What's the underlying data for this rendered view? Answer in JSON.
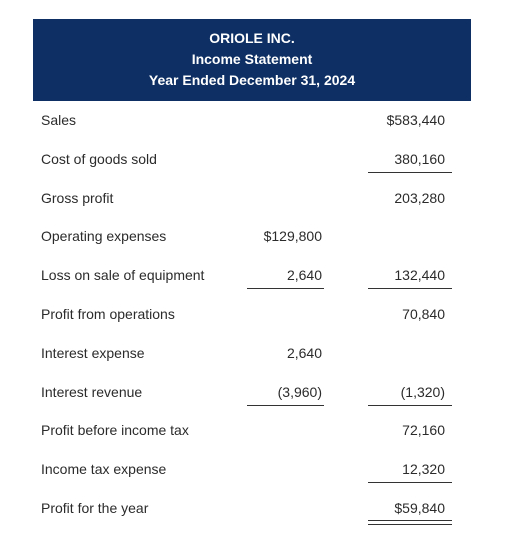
{
  "header": {
    "company": "ORIOLE INC.",
    "statement": "Income Statement",
    "period": "Year Ended December 31, 2024"
  },
  "rows": [
    {
      "label": "Sales",
      "mid": "",
      "right": "$583,440"
    },
    {
      "label": "Cost of goods sold",
      "mid": "",
      "right": "380,160"
    },
    {
      "label": "Gross profit",
      "mid": "",
      "right": "203,280"
    },
    {
      "label": "Operating expenses",
      "mid": "$129,800",
      "right": ""
    },
    {
      "label": "Loss on sale of equipment",
      "mid": "2,640",
      "right": "132,440"
    },
    {
      "label": "Profit from operations",
      "mid": "",
      "right": "70,840"
    },
    {
      "label": "Interest expense",
      "mid": "2,640",
      "right": ""
    },
    {
      "label": "Interest revenue",
      "mid": "(3,960)",
      "right": "(1,320)"
    },
    {
      "label": "Profit before income tax",
      "mid": "",
      "right": "72,160"
    },
    {
      "label": "Income tax expense",
      "mid": "",
      "right": "12,320"
    },
    {
      "label": "Profit for the year",
      "mid": "",
      "right": "$59,840"
    }
  ]
}
